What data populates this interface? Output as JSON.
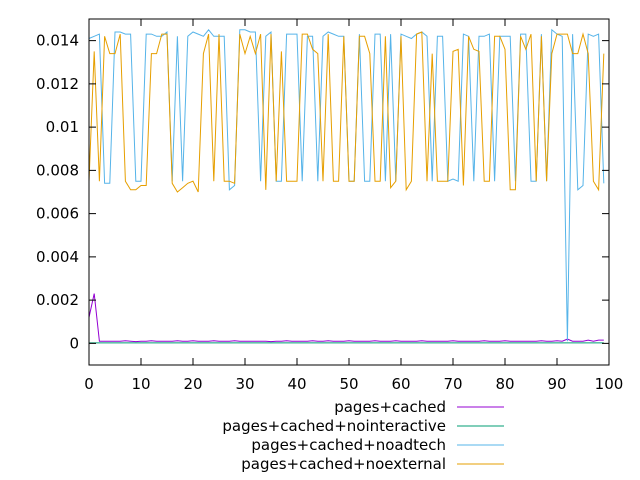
{
  "chart_data": {
    "type": "line",
    "title": "",
    "xlabel": "",
    "ylabel": "",
    "xlim": [
      0,
      100
    ],
    "ylim": [
      -0.001,
      0.015
    ],
    "x_ticks": [
      0,
      10,
      20,
      30,
      40,
      50,
      60,
      70,
      80,
      90,
      100
    ],
    "y_ticks": [
      0,
      0.002,
      0.004,
      0.006,
      0.008,
      0.01,
      0.012,
      0.014
    ],
    "y_tick_labels": [
      "0",
      "0.002",
      "0.004",
      "0.006",
      "0.008",
      "0.01",
      "0.012",
      "0.014"
    ],
    "legend_position": "bottom-center",
    "grid": false,
    "series": [
      {
        "name": "pages+cached",
        "color": "#9400d3",
        "x": [
          0,
          1,
          2,
          3,
          4,
          5,
          6,
          7,
          8,
          9,
          10,
          11,
          12,
          13,
          14,
          15,
          16,
          17,
          18,
          19,
          20,
          21,
          22,
          23,
          24,
          25,
          26,
          27,
          28,
          29,
          30,
          31,
          32,
          33,
          34,
          35,
          36,
          37,
          38,
          39,
          40,
          41,
          42,
          43,
          44,
          45,
          46,
          47,
          48,
          49,
          50,
          51,
          52,
          53,
          54,
          55,
          56,
          57,
          58,
          59,
          60,
          61,
          62,
          63,
          64,
          65,
          66,
          67,
          68,
          69,
          70,
          71,
          72,
          73,
          74,
          75,
          76,
          77,
          78,
          79,
          80,
          81,
          82,
          83,
          84,
          85,
          86,
          87,
          88,
          89,
          90,
          91,
          92,
          93,
          94,
          95,
          96,
          97,
          98,
          99
        ],
        "values": [
          0.0012,
          0.0023,
          0.0001,
          0.0001,
          0.0001,
          0.0001,
          0.0001,
          0.00012,
          0.0001,
          8e-05,
          0.0001,
          0.0001,
          0.00012,
          0.0001,
          0.0001,
          0.0001,
          0.0001,
          0.00012,
          0.0001,
          0.0001,
          0.00012,
          0.0001,
          0.0001,
          0.0001,
          0.00012,
          0.0001,
          0.0001,
          0.0001,
          0.00012,
          0.0001,
          0.0001,
          0.0001,
          0.0001,
          0.0001,
          0.0001,
          8e-05,
          0.0001,
          0.0001,
          0.00012,
          0.0001,
          0.0001,
          0.0001,
          0.0001,
          0.00012,
          0.0001,
          0.0001,
          0.00012,
          0.0001,
          0.0001,
          0.0001,
          0.00012,
          0.0001,
          0.0001,
          0.0001,
          0.0001,
          0.00012,
          0.0001,
          0.0001,
          0.0001,
          0.00012,
          0.0001,
          0.0001,
          0.0001,
          0.0001,
          0.00012,
          0.0001,
          0.0001,
          0.0001,
          0.0001,
          0.0001,
          0.00012,
          0.0001,
          0.0001,
          0.0001,
          0.0001,
          0.0001,
          0.00012,
          0.0001,
          0.0001,
          0.0001,
          0.00012,
          0.0001,
          0.0001,
          0.0001,
          0.0001,
          0.0001,
          0.0001,
          0.00012,
          0.0001,
          0.0001,
          0.00012,
          0.0001,
          0.0002,
          0.0001,
          0.0001,
          0.0001,
          0.00015,
          0.0001,
          0.00015,
          0.00015
        ]
      },
      {
        "name": "pages+cached+nointeractive",
        "color": "#009e73",
        "x": [
          0,
          99
        ],
        "values": [
          2e-05,
          2e-05
        ]
      },
      {
        "name": "pages+cached+noadtech",
        "color": "#56b4e9",
        "x": [
          0,
          1,
          2,
          3,
          4,
          5,
          6,
          7,
          8,
          9,
          10,
          11,
          12,
          13,
          14,
          15,
          16,
          17,
          18,
          19,
          20,
          21,
          22,
          23,
          24,
          25,
          26,
          27,
          28,
          29,
          30,
          31,
          32,
          33,
          34,
          35,
          36,
          37,
          38,
          39,
          40,
          41,
          42,
          43,
          44,
          45,
          46,
          47,
          48,
          49,
          50,
          51,
          52,
          53,
          54,
          55,
          56,
          57,
          58,
          59,
          60,
          61,
          62,
          63,
          64,
          65,
          66,
          67,
          68,
          69,
          70,
          71,
          72,
          73,
          74,
          75,
          76,
          77,
          78,
          79,
          80,
          81,
          82,
          83,
          84,
          85,
          86,
          87,
          88,
          89,
          90,
          91,
          92,
          93,
          94,
          95,
          96,
          97,
          98,
          99
        ],
        "values": [
          0.0141,
          0.0142,
          0.0143,
          0.0074,
          0.0074,
          0.0144,
          0.0144,
          0.0143,
          0.0143,
          0.0075,
          0.0075,
          0.0143,
          0.0143,
          0.0142,
          0.0142,
          0.0144,
          0.0075,
          0.0142,
          0.0075,
          0.0142,
          0.0144,
          0.0143,
          0.0142,
          0.0145,
          0.0142,
          0.0142,
          0.0142,
          0.0071,
          0.0073,
          0.0145,
          0.0145,
          0.0144,
          0.0144,
          0.0075,
          0.0142,
          0.0144,
          0.0075,
          0.0075,
          0.0143,
          0.0143,
          0.0143,
          0.0075,
          0.0142,
          0.0142,
          0.0075,
          0.0142,
          0.0144,
          0.0143,
          0.0142,
          0.0142,
          0.0075,
          0.0075,
          0.0143,
          0.0075,
          0.0075,
          0.0143,
          0.0143,
          0.0075,
          0.0143,
          0.0075,
          0.0143,
          0.0142,
          0.0141,
          0.0143,
          0.0144,
          0.0142,
          0.0075,
          0.0142,
          0.0142,
          0.0075,
          0.0076,
          0.0075,
          0.0143,
          0.0142,
          0.0075,
          0.0142,
          0.0142,
          0.0143,
          0.0075,
          0.0142,
          0.0142,
          0.0142,
          0.0075,
          0.0143,
          0.0143,
          0.0075,
          0.0075,
          0.0143,
          0.0075,
          0.0145,
          0.0143,
          0.0142,
          0.0001,
          0.0143,
          0.0071,
          0.0073,
          0.0143,
          0.0142,
          0.0143,
          0.0074
        ]
      },
      {
        "name": "pages+cached+noexternal",
        "color": "#e69f00",
        "x": [
          0,
          1,
          2,
          3,
          4,
          5,
          6,
          7,
          8,
          9,
          10,
          11,
          12,
          13,
          14,
          15,
          16,
          17,
          18,
          19,
          20,
          21,
          22,
          23,
          24,
          25,
          26,
          27,
          28,
          29,
          30,
          31,
          32,
          33,
          34,
          35,
          36,
          37,
          38,
          39,
          40,
          41,
          42,
          43,
          44,
          45,
          46,
          47,
          48,
          49,
          50,
          51,
          52,
          53,
          54,
          55,
          56,
          57,
          58,
          59,
          60,
          61,
          62,
          63,
          64,
          65,
          66,
          67,
          68,
          69,
          70,
          71,
          72,
          73,
          74,
          75,
          76,
          77,
          78,
          79,
          80,
          81,
          82,
          83,
          84,
          85,
          86,
          87,
          88,
          89,
          90,
          91,
          92,
          93,
          94,
          95,
          96,
          97,
          98,
          99
        ],
        "values": [
          0.0075,
          0.0135,
          0.0075,
          0.0142,
          0.0134,
          0.0134,
          0.0143,
          0.0075,
          0.0071,
          0.0071,
          0.0073,
          0.0073,
          0.0134,
          0.0134,
          0.0143,
          0.0143,
          0.0074,
          0.007,
          0.0072,
          0.0074,
          0.0075,
          0.007,
          0.0134,
          0.0143,
          0.0075,
          0.0143,
          0.0075,
          0.0075,
          0.0074,
          0.0143,
          0.0134,
          0.0142,
          0.0134,
          0.0143,
          0.0071,
          0.0143,
          0.0075,
          0.0135,
          0.0075,
          0.0075,
          0.0075,
          0.0143,
          0.0143,
          0.0136,
          0.0134,
          0.0075,
          0.0143,
          0.0075,
          0.0075,
          0.0142,
          0.0075,
          0.0075,
          0.0142,
          0.0142,
          0.0134,
          0.0075,
          0.0075,
          0.0142,
          0.0072,
          0.0075,
          0.0142,
          0.0071,
          0.0075,
          0.0143,
          0.0144,
          0.0075,
          0.0134,
          0.0075,
          0.0075,
          0.0075,
          0.0135,
          0.0136,
          0.0073,
          0.0142,
          0.0136,
          0.0135,
          0.0075,
          0.0075,
          0.0142,
          0.0142,
          0.0136,
          0.0071,
          0.0071,
          0.0142,
          0.0136,
          0.0143,
          0.0075,
          0.0142,
          0.0075,
          0.0134,
          0.0143,
          0.0143,
          0.0143,
          0.0134,
          0.0134,
          0.0143,
          0.0134,
          0.0075,
          0.0071,
          0.0134
        ]
      }
    ]
  }
}
